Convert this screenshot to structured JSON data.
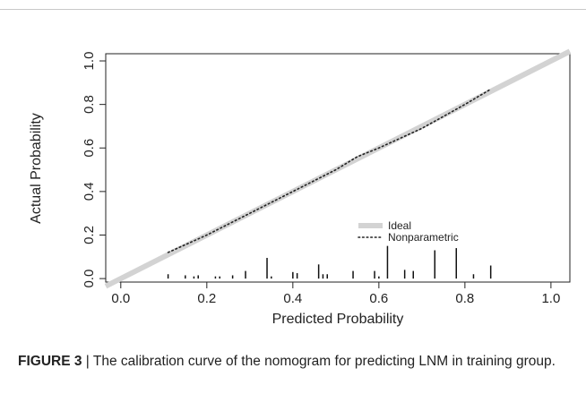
{
  "chart_data": {
    "type": "calibration",
    "x_label": "Predicted Probability",
    "y_label": "Actual Probability",
    "xlim": [
      -0.035,
      1.044
    ],
    "ylim": [
      -0.016,
      1.033
    ],
    "xticks": [
      {
        "value": 0,
        "label": "0.0"
      },
      0.2,
      0.4,
      0.6,
      0.8,
      {
        "value": 1,
        "label": "1.0"
      }
    ],
    "yticks": [
      {
        "value": 0,
        "label": "0.0"
      },
      0.2,
      0.4,
      0.6,
      0.8,
      {
        "value": 1,
        "label": "1.0"
      }
    ],
    "series": [
      {
        "name": "Ideal",
        "color": "#d3d3d3",
        "x": [
          -0.035,
          1.044
        ],
        "values": [
          -0.035,
          1.044
        ]
      },
      {
        "name": "Nonparametric",
        "color": "#222222",
        "x": [
          0.11,
          0.2,
          0.3,
          0.4,
          0.5,
          0.55,
          0.6,
          0.7,
          0.8,
          0.86
        ],
        "values": [
          0.12,
          0.2,
          0.3,
          0.4,
          0.5,
          0.56,
          0.6,
          0.69,
          0.8,
          0.87
        ]
      }
    ],
    "rug": {
      "color": "#111111",
      "x": [
        0.11,
        0.15,
        0.17,
        0.18,
        0.22,
        0.23,
        0.26,
        0.29,
        0.34,
        0.35,
        0.4,
        0.41,
        0.46,
        0.47,
        0.48,
        0.54,
        0.59,
        0.6,
        0.62,
        0.66,
        0.68,
        0.73,
        0.78,
        0.82,
        0.86
      ],
      "values": [
        0.02,
        0.015,
        0.01,
        0.015,
        0.01,
        0.01,
        0.015,
        0.035,
        0.095,
        0.01,
        0.03,
        0.025,
        0.065,
        0.02,
        0.02,
        0.035,
        0.035,
        0.01,
        0.15,
        0.04,
        0.035,
        0.13,
        0.14,
        0.02,
        0.06
      ]
    },
    "caption_label": "FIGURE 3",
    "caption_separator": "|",
    "caption": "The calibration curve of the nomogram for predicting LNM in training group."
  }
}
